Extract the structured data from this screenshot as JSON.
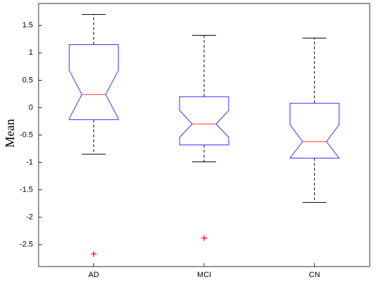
{
  "chart_data": {
    "type": "boxplot",
    "y_label": "Mean",
    "categories": [
      "AD",
      "MCI",
      "CN"
    ],
    "boxes": [
      {
        "whisker_low": -0.85,
        "q1": -0.22,
        "notch_low": -0.2,
        "median": 0.24,
        "notch_high": 0.68,
        "q3": 1.15,
        "whisker_high": 1.7,
        "outliers": [
          -2.67
        ]
      },
      {
        "whisker_low": -0.99,
        "q1": -0.68,
        "notch_low": -0.54,
        "median": -0.3,
        "notch_high": -0.05,
        "q3": 0.2,
        "whisker_high": 1.32,
        "outliers": [
          -2.38
        ]
      },
      {
        "whisker_low": -1.73,
        "q1": -0.92,
        "notch_low": -0.92,
        "median": -0.62,
        "notch_high": -0.31,
        "q3": 0.08,
        "whisker_high": 1.27,
        "outliers": []
      }
    ],
    "box_color": "#3333ff",
    "median_color": "#ff3333",
    "whisker_color": "#000000",
    "outlier_color": "#ff0000",
    "ylim": [
      -2.9,
      1.9
    ],
    "yticks": [
      -2.5,
      -2,
      -1.5,
      -1,
      -0.5,
      0,
      0.5,
      1,
      1.5
    ]
  }
}
